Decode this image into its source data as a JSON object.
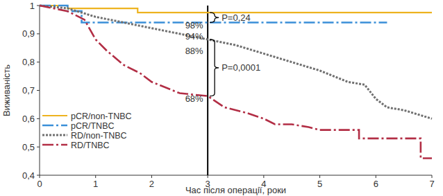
{
  "chart_data": {
    "type": "line",
    "x_label": "Час після операції, роки",
    "y_label": "Виживаність",
    "xlim": [
      0,
      7
    ],
    "ylim": [
      0.4,
      1
    ],
    "xticks": [
      0,
      1,
      2,
      3,
      4,
      5,
      6,
      7
    ],
    "yticks": [
      {
        "value": 0.4,
        "label": "0,4"
      },
      {
        "value": 0.5,
        "label": "0,5"
      },
      {
        "value": 0.6,
        "label": "0,6"
      },
      {
        "value": 0.7,
        "label": "0,7"
      },
      {
        "value": 0.8,
        "label": "0,8"
      },
      {
        "value": 0.9,
        "label": "0,9"
      },
      1
    ],
    "grid": false,
    "legend": "lower left",
    "vline": 3,
    "series": [
      {
        "name": "pCR/non-TNBC",
        "color": "#edb31f",
        "line_style": "solid",
        "x": [
          0,
          0.5,
          0.5,
          1.75,
          1.75,
          7
        ],
        "values": [
          1,
          1,
          0.99,
          0.99,
          0.975,
          0.975
        ]
      },
      {
        "name": "pCR/TNBC",
        "color": "#3a8fd8",
        "line_style": "dashdot",
        "x": [
          0,
          0.5,
          0.5,
          0.75,
          0.75,
          6.2
        ],
        "values": [
          1,
          1,
          0.98,
          0.98,
          0.94,
          0.94
        ]
      },
      {
        "name": "RD/non-TNBC",
        "color": "#707070",
        "line_style": "dotted",
        "x": [
          0,
          0.5,
          1,
          1.5,
          2,
          2.5,
          3,
          3.5,
          4,
          4.5,
          5,
          5.5,
          5.8,
          6,
          6.2,
          6.5,
          7
        ],
        "values": [
          1,
          0.99,
          0.96,
          0.94,
          0.92,
          0.9,
          0.88,
          0.86,
          0.83,
          0.8,
          0.77,
          0.73,
          0.72,
          0.67,
          0.64,
          0.63,
          0.6
        ]
      },
      {
        "name": "RD/TNBC",
        "color": "#b22e45",
        "line_style": "dashdot",
        "x": [
          0,
          0.5,
          0.8,
          1,
          1.2,
          1.5,
          1.8,
          2,
          2.5,
          3,
          3.3,
          3.7,
          4,
          4.2,
          4.5,
          4.8,
          5,
          5.7,
          5.7,
          6.8,
          6.8,
          7
        ],
        "values": [
          1,
          0.98,
          0.95,
          0.88,
          0.84,
          0.79,
          0.76,
          0.73,
          0.69,
          0.68,
          0.64,
          0.62,
          0.6,
          0.58,
          0.58,
          0.57,
          0.56,
          0.56,
          0.53,
          0.53,
          0.46,
          0.46
        ]
      }
    ],
    "annotations": [
      {
        "text": "98%",
        "x": 2.92,
        "y": 0.93
      },
      {
        "text": "94%",
        "x": 2.92,
        "y": 0.89
      },
      {
        "text": "88%",
        "x": 2.92,
        "y": 0.84
      },
      {
        "text": "68%",
        "x": 2.92,
        "y": 0.67
      }
    ],
    "comparisons": [
      {
        "label": "P=0,24",
        "y1": 0.975,
        "y2": 0.94
      },
      {
        "label": "P=0,0001",
        "y1": 0.88,
        "y2": 0.68
      }
    ]
  }
}
